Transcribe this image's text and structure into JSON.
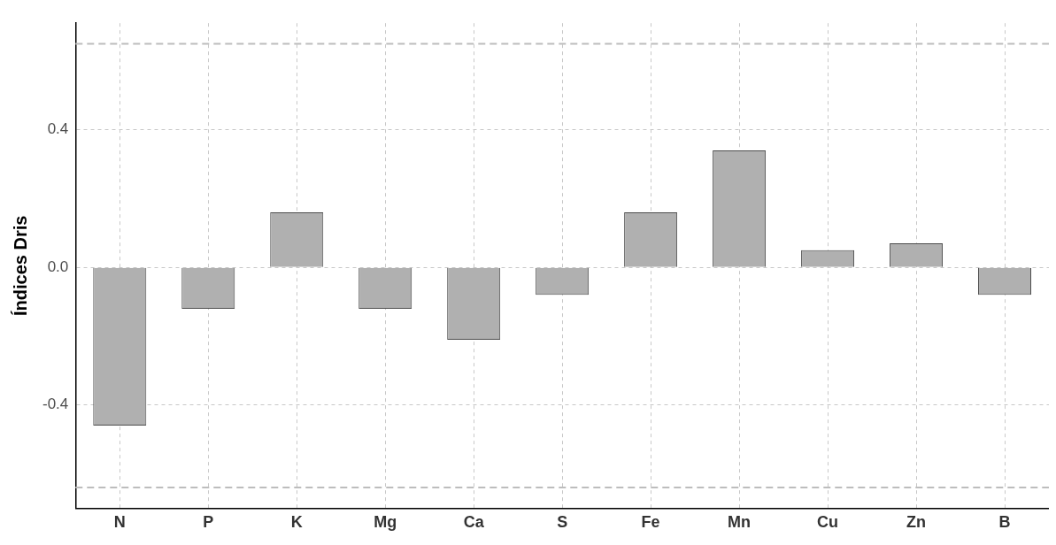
{
  "chart_data": {
    "type": "bar",
    "ylabel": "Índices Dris",
    "categories": [
      "N",
      "P",
      "K",
      "Mg",
      "Ca",
      "S",
      "Fe",
      "Mn",
      "Cu",
      "Zn",
      "B"
    ],
    "values": [
      -0.46,
      -0.12,
      0.16,
      -0.12,
      -0.21,
      -0.08,
      0.16,
      0.34,
      0.05,
      0.07,
      -0.08
    ],
    "color": "#b0b0b0",
    "ylim": [
      -0.7,
      0.71
    ],
    "yticks": [
      {
        "value": -0.4,
        "label": "-0.4"
      },
      {
        "value": 0,
        "label": "0.0"
      },
      {
        "value": 0.4,
        "label": "0.4"
      }
    ],
    "ref_lines": [
      {
        "axis": "y",
        "value": 0.65,
        "label": null,
        "color": "#bdbdbd",
        "line_style": "dashed"
      },
      {
        "axis": "y",
        "value": -0.64,
        "label": null,
        "color": "#bdbdbd",
        "line_style": "dashed"
      }
    ],
    "grid": true,
    "legend": false
  }
}
